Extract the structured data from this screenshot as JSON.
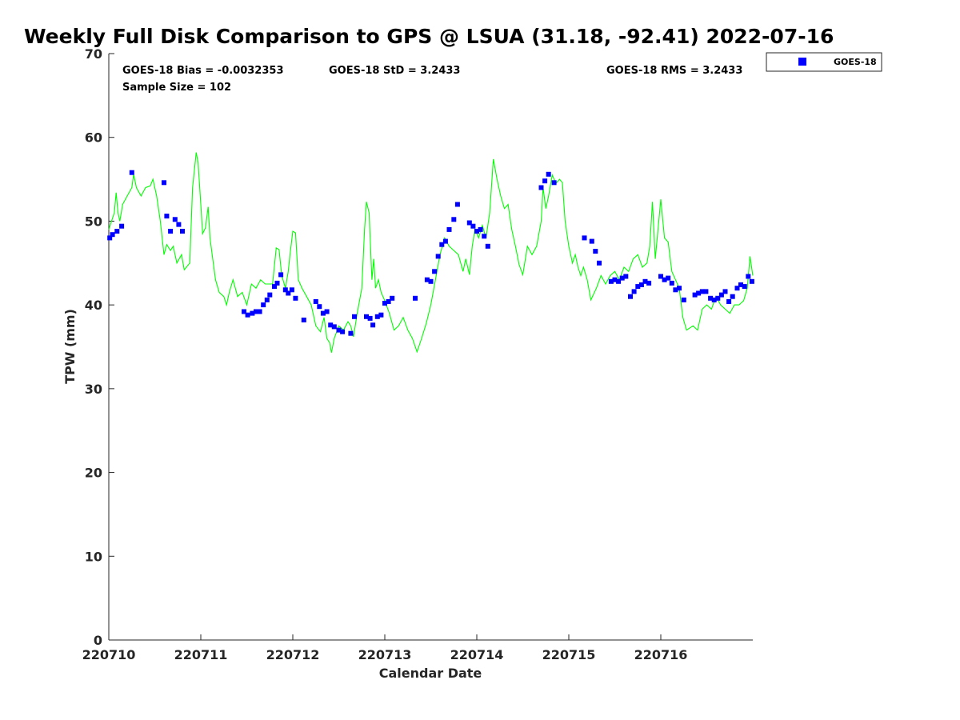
{
  "chart_data": {
    "type": "scatter",
    "title": "Weekly Full Disk Comparison to GPS @ LSUA (31.18, -92.41) 2022-07-16",
    "xlabel": "Calendar Date",
    "ylabel": "TPW (mm)",
    "xlim": [
      0,
      7
    ],
    "ylim": [
      0,
      70
    ],
    "x_ticks": [
      0,
      1,
      2,
      3,
      4,
      5,
      6
    ],
    "x_tick_labels": [
      "220710",
      "220711",
      "220712",
      "220713",
      "220714",
      "220715",
      "220716"
    ],
    "y_ticks": [
      0,
      10,
      20,
      30,
      40,
      50,
      60,
      70
    ],
    "y_tick_labels": [
      "0",
      "10",
      "20",
      "30",
      "40",
      "50",
      "60",
      "70"
    ],
    "stats": {
      "bias": "GOES-18 Bias = -0.0032353",
      "std": "GOES-18 StD = 3.2433",
      "rms": "GOES-18 RMS = 3.2433",
      "sample": "Sample Size = 102"
    },
    "legend": {
      "label": "GOES-18",
      "position": "top-right outside"
    },
    "colors": {
      "goes": "#0000ff",
      "gps": "#00ff00"
    },
    "series": [
      {
        "name": "GOES-18",
        "style": "square-marker",
        "points": [
          [
            0.01,
            48.0
          ],
          [
            0.04,
            48.4
          ],
          [
            0.09,
            48.8
          ],
          [
            0.14,
            49.4
          ],
          [
            0.25,
            55.8
          ],
          [
            0.6,
            54.6
          ],
          [
            0.63,
            50.6
          ],
          [
            0.67,
            48.8
          ],
          [
            0.72,
            50.2
          ],
          [
            0.76,
            49.6
          ],
          [
            0.8,
            48.8
          ],
          [
            1.47,
            39.2
          ],
          [
            1.51,
            38.8
          ],
          [
            1.56,
            39.0
          ],
          [
            1.6,
            39.2
          ],
          [
            1.64,
            39.2
          ],
          [
            1.68,
            40.0
          ],
          [
            1.72,
            40.6
          ],
          [
            1.75,
            41.2
          ],
          [
            1.8,
            42.2
          ],
          [
            1.83,
            42.6
          ],
          [
            1.87,
            43.6
          ],
          [
            1.92,
            41.8
          ],
          [
            1.95,
            41.4
          ],
          [
            1.99,
            41.8
          ],
          [
            2.03,
            40.8
          ],
          [
            2.12,
            38.2
          ],
          [
            2.25,
            40.4
          ],
          [
            2.29,
            39.8
          ],
          [
            2.33,
            39.0
          ],
          [
            2.37,
            39.2
          ],
          [
            2.41,
            37.6
          ],
          [
            2.45,
            37.4
          ],
          [
            2.5,
            37.0
          ],
          [
            2.54,
            36.8
          ],
          [
            2.63,
            36.6
          ],
          [
            2.67,
            38.6
          ],
          [
            2.8,
            38.6
          ],
          [
            2.84,
            38.4
          ],
          [
            2.87,
            37.6
          ],
          [
            2.92,
            38.6
          ],
          [
            2.96,
            38.8
          ],
          [
            3.0,
            40.2
          ],
          [
            3.04,
            40.4
          ],
          [
            3.08,
            40.8
          ],
          [
            3.33,
            40.8
          ],
          [
            3.46,
            43.0
          ],
          [
            3.5,
            42.8
          ],
          [
            3.54,
            44.0
          ],
          [
            3.58,
            45.8
          ],
          [
            3.62,
            47.2
          ],
          [
            3.66,
            47.6
          ],
          [
            3.7,
            49.0
          ],
          [
            3.75,
            50.2
          ],
          [
            3.79,
            52.0
          ],
          [
            3.92,
            49.8
          ],
          [
            3.96,
            49.4
          ],
          [
            4.0,
            48.8
          ],
          [
            4.04,
            49.0
          ],
          [
            4.08,
            48.2
          ],
          [
            4.12,
            47.0
          ],
          [
            4.7,
            54.0
          ],
          [
            4.74,
            54.8
          ],
          [
            4.78,
            55.6
          ],
          [
            4.84,
            54.6
          ],
          [
            5.17,
            48.0
          ],
          [
            5.25,
            47.6
          ],
          [
            5.29,
            46.4
          ],
          [
            5.33,
            45.0
          ],
          [
            5.46,
            42.8
          ],
          [
            5.5,
            43.0
          ],
          [
            5.54,
            42.8
          ],
          [
            5.58,
            43.2
          ],
          [
            5.62,
            43.4
          ],
          [
            5.67,
            41.0
          ],
          [
            5.71,
            41.6
          ],
          [
            5.75,
            42.2
          ],
          [
            5.79,
            42.4
          ],
          [
            5.83,
            42.8
          ],
          [
            5.87,
            42.6
          ],
          [
            6.0,
            43.4
          ],
          [
            6.04,
            43.0
          ],
          [
            6.08,
            43.2
          ],
          [
            6.12,
            42.6
          ],
          [
            6.16,
            41.8
          ],
          [
            6.2,
            42.0
          ],
          [
            6.25,
            40.6
          ],
          [
            6.37,
            41.2
          ],
          [
            6.41,
            41.4
          ],
          [
            6.45,
            41.6
          ],
          [
            6.49,
            41.6
          ],
          [
            6.54,
            40.8
          ],
          [
            6.58,
            40.6
          ],
          [
            6.62,
            40.8
          ],
          [
            6.66,
            41.2
          ],
          [
            6.7,
            41.6
          ],
          [
            6.74,
            40.4
          ],
          [
            6.78,
            41.0
          ],
          [
            6.83,
            42.0
          ],
          [
            6.87,
            42.4
          ],
          [
            6.91,
            42.2
          ],
          [
            6.95,
            43.4
          ],
          [
            6.99,
            42.8
          ]
        ]
      },
      {
        "name": "GPS",
        "style": "line",
        "points": [
          [
            0.0,
            49.0
          ],
          [
            0.03,
            50.0
          ],
          [
            0.06,
            51.0
          ],
          [
            0.08,
            53.4
          ],
          [
            0.1,
            51.0
          ],
          [
            0.12,
            50.0
          ],
          [
            0.15,
            52.0
          ],
          [
            0.2,
            53.0
          ],
          [
            0.25,
            54.0
          ],
          [
            0.27,
            55.6
          ],
          [
            0.3,
            54.0
          ],
          [
            0.35,
            53.0
          ],
          [
            0.4,
            54.0
          ],
          [
            0.45,
            54.2
          ],
          [
            0.48,
            55.0
          ],
          [
            0.52,
            53.0
          ],
          [
            0.56,
            50.0
          ],
          [
            0.6,
            46.0
          ],
          [
            0.63,
            47.2
          ],
          [
            0.67,
            46.5
          ],
          [
            0.7,
            47.0
          ],
          [
            0.74,
            45.0
          ],
          [
            0.79,
            46.0
          ],
          [
            0.82,
            44.2
          ],
          [
            0.88,
            45.0
          ],
          [
            0.91,
            54.0
          ],
          [
            0.93,
            56.0
          ],
          [
            0.95,
            58.2
          ],
          [
            0.97,
            57.0
          ],
          [
            1.0,
            52.0
          ],
          [
            1.02,
            48.5
          ],
          [
            1.05,
            49.2
          ],
          [
            1.08,
            51.7
          ],
          [
            1.1,
            48.0
          ],
          [
            1.13,
            45.5
          ],
          [
            1.16,
            43.0
          ],
          [
            1.2,
            41.5
          ],
          [
            1.25,
            41.0
          ],
          [
            1.28,
            40.0
          ],
          [
            1.31,
            41.5
          ],
          [
            1.35,
            43.0
          ],
          [
            1.4,
            41.0
          ],
          [
            1.45,
            41.5
          ],
          [
            1.5,
            40.0
          ],
          [
            1.55,
            42.5
          ],
          [
            1.6,
            42.0
          ],
          [
            1.65,
            43.0
          ],
          [
            1.7,
            42.5
          ],
          [
            1.78,
            42.5
          ],
          [
            1.82,
            46.8
          ],
          [
            1.85,
            46.6
          ],
          [
            1.88,
            43.5
          ],
          [
            1.92,
            42.0
          ],
          [
            1.95,
            44.0
          ],
          [
            1.97,
            46.0
          ],
          [
            2.0,
            48.8
          ],
          [
            2.03,
            48.6
          ],
          [
            2.06,
            43.0
          ],
          [
            2.1,
            42.0
          ],
          [
            2.15,
            41.0
          ],
          [
            2.2,
            40.0
          ],
          [
            2.25,
            37.5
          ],
          [
            2.3,
            36.8
          ],
          [
            2.34,
            38.5
          ],
          [
            2.37,
            36.0
          ],
          [
            2.4,
            35.5
          ],
          [
            2.42,
            34.3
          ],
          [
            2.45,
            36.0
          ],
          [
            2.5,
            37.5
          ],
          [
            2.55,
            37.0
          ],
          [
            2.6,
            38.0
          ],
          [
            2.63,
            37.5
          ],
          [
            2.66,
            36.2
          ],
          [
            2.7,
            39.0
          ],
          [
            2.75,
            42.0
          ],
          [
            2.78,
            49.0
          ],
          [
            2.8,
            52.3
          ],
          [
            2.83,
            51.0
          ],
          [
            2.86,
            43.0
          ],
          [
            2.88,
            45.5
          ],
          [
            2.9,
            42.0
          ],
          [
            2.93,
            43.0
          ],
          [
            2.96,
            41.5
          ],
          [
            3.0,
            40.5
          ],
          [
            3.05,
            39.0
          ],
          [
            3.1,
            37.0
          ],
          [
            3.15,
            37.5
          ],
          [
            3.2,
            38.5
          ],
          [
            3.25,
            37.0
          ],
          [
            3.3,
            36.0
          ],
          [
            3.35,
            34.4
          ],
          [
            3.4,
            36.0
          ],
          [
            3.45,
            37.8
          ],
          [
            3.5,
            40.0
          ],
          [
            3.55,
            43.0
          ],
          [
            3.6,
            46.0
          ],
          [
            3.65,
            48.0
          ],
          [
            3.7,
            47.0
          ],
          [
            3.75,
            46.5
          ],
          [
            3.8,
            46.0
          ],
          [
            3.85,
            44.0
          ],
          [
            3.88,
            45.5
          ],
          [
            3.92,
            43.6
          ],
          [
            3.95,
            47.0
          ],
          [
            3.98,
            49.0
          ],
          [
            4.02,
            48.0
          ],
          [
            4.06,
            49.5
          ],
          [
            4.1,
            48.0
          ],
          [
            4.14,
            51.0
          ],
          [
            4.18,
            57.4
          ],
          [
            4.22,
            55.0
          ],
          [
            4.26,
            53.0
          ],
          [
            4.3,
            51.5
          ],
          [
            4.34,
            52.0
          ],
          [
            4.38,
            49.0
          ],
          [
            4.42,
            47.0
          ],
          [
            4.46,
            44.8
          ],
          [
            4.5,
            43.6
          ],
          [
            4.55,
            47.0
          ],
          [
            4.6,
            46.0
          ],
          [
            4.65,
            47.0
          ],
          [
            4.7,
            50.0
          ],
          [
            4.72,
            54.0
          ],
          [
            4.75,
            51.5
          ],
          [
            4.78,
            53.0
          ],
          [
            4.82,
            55.5
          ],
          [
            4.86,
            54.5
          ],
          [
            4.9,
            55.0
          ],
          [
            4.93,
            54.6
          ],
          [
            4.96,
            50.0
          ],
          [
            5.0,
            47.0
          ],
          [
            5.04,
            45.0
          ],
          [
            5.07,
            46.0
          ],
          [
            5.1,
            44.5
          ],
          [
            5.13,
            43.5
          ],
          [
            5.16,
            44.5
          ],
          [
            5.2,
            43.0
          ],
          [
            5.24,
            40.6
          ],
          [
            5.3,
            42.0
          ],
          [
            5.35,
            43.5
          ],
          [
            5.4,
            42.5
          ],
          [
            5.45,
            43.5
          ],
          [
            5.5,
            44.0
          ],
          [
            5.55,
            43.0
          ],
          [
            5.6,
            44.5
          ],
          [
            5.65,
            44.0
          ],
          [
            5.7,
            45.5
          ],
          [
            5.75,
            46.0
          ],
          [
            5.8,
            44.5
          ],
          [
            5.85,
            45.0
          ],
          [
            5.88,
            47.0
          ],
          [
            5.91,
            52.3
          ],
          [
            5.94,
            45.5
          ],
          [
            5.97,
            49.0
          ],
          [
            6.0,
            52.6
          ],
          [
            6.04,
            48.0
          ],
          [
            6.08,
            47.5
          ],
          [
            6.12,
            44.0
          ],
          [
            6.16,
            43.0
          ],
          [
            6.2,
            42.0
          ],
          [
            6.24,
            38.5
          ],
          [
            6.28,
            37.0
          ],
          [
            6.35,
            37.5
          ],
          [
            6.4,
            37.0
          ],
          [
            6.45,
            39.5
          ],
          [
            6.5,
            40.0
          ],
          [
            6.55,
            39.5
          ],
          [
            6.6,
            41.0
          ],
          [
            6.65,
            40.0
          ],
          [
            6.7,
            39.5
          ],
          [
            6.75,
            39.0
          ],
          [
            6.8,
            40.0
          ],
          [
            6.85,
            40.0
          ],
          [
            6.9,
            40.5
          ],
          [
            6.94,
            42.0
          ],
          [
            6.97,
            45.8
          ],
          [
            7.0,
            43.5
          ]
        ]
      }
    ]
  }
}
